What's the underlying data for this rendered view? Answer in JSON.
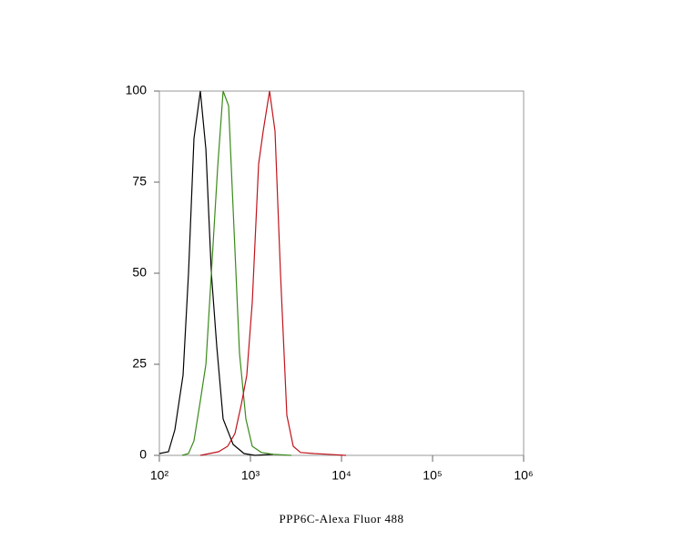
{
  "chart_data": {
    "type": "line",
    "xscale": "log",
    "xlabel": "PPP6C-Alexa Fluor 488",
    "xlim": [
      100,
      1000000
    ],
    "xticks": [
      {
        "value": 100,
        "label": "10²"
      },
      {
        "value": 1000,
        "label": "10³"
      },
      {
        "value": 10000,
        "label": "10⁴"
      },
      {
        "value": 100000,
        "label": "10⁵"
      },
      {
        "value": 1000000,
        "label": "10⁶"
      }
    ],
    "ylim": [
      0,
      100
    ],
    "yticks": [
      0,
      25,
      50,
      75,
      100
    ],
    "series": [
      {
        "color": "#000000",
        "x": [
          100,
          126,
          148,
          182,
          209,
          240,
          282,
          324,
          372,
          427,
          501,
          646,
          851,
          1122,
          1778
        ],
        "values": [
          0.5,
          1,
          7,
          22,
          50,
          87,
          100,
          84,
          50,
          30,
          10,
          3,
          0.5,
          0,
          0.3
        ]
      },
      {
        "color": "#3a8a1a",
        "x": [
          178,
          209,
          240,
          282,
          324,
          372,
          437,
          501,
          575,
          661,
          759,
          891,
          1047,
          1318,
          1778,
          2818
        ],
        "values": [
          0,
          0.5,
          4,
          15,
          25,
          50,
          79,
          100,
          96,
          62,
          28,
          10,
          2.5,
          0.8,
          0.3,
          0
        ]
      },
      {
        "color": "#c0141c",
        "x": [
          282,
          447,
          562,
          676,
          794,
          912,
          1047,
          1230,
          1380,
          1622,
          1862,
          2138,
          2512,
          2951,
          3548,
          5012,
          7079,
          11220
        ],
        "values": [
          0,
          1,
          2.5,
          6,
          14,
          22,
          42,
          80,
          89,
          100,
          89,
          50,
          11,
          2.5,
          0.8,
          0.5,
          0.3,
          0
        ]
      }
    ]
  }
}
